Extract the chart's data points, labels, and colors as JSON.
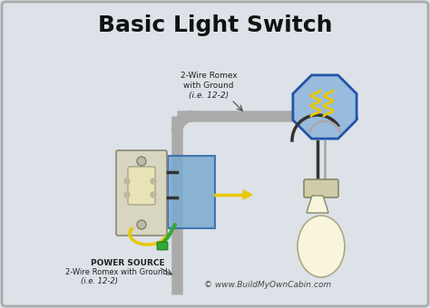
{
  "title": "Basic Light Switch",
  "title_fontsize": 18,
  "title_fontweight": "bold",
  "bg_color": "#dde2e8",
  "border_color": "#aaaaaa",
  "label_romex_top": "2-Wire Romex\nwith Ground\n(i.e. 12-2)",
  "label_power_line1": "POWER SOURCE",
  "label_power_line2": "2-Wire Romex with Ground",
  "label_power_line3": "(i.e. 12-2)",
  "label_website": "© www.BuildMyOwnCabin.com",
  "wire_gray": "#aaaaaa",
  "wire_black": "#333333",
  "wire_yellow": "#e8c800",
  "wire_green": "#33aa33",
  "switch_box_color": "#7aaad0",
  "light_fixture_color": "#99bbdd",
  "light_bulb_color": "#f8f5dc",
  "switch_plate_color": "#d8d5c0",
  "switch_toggle_color": "#e8e4b8"
}
